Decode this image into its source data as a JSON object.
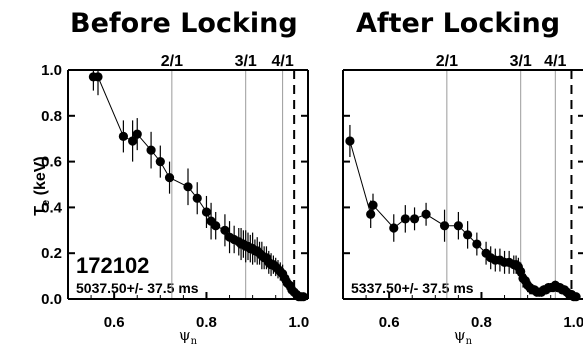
{
  "chart_data": [
    {
      "type": "scatter",
      "title": "Before Locking",
      "ylabel_main": "T",
      "ylabel_sub": "e",
      "ylabel_unit": " (keV)",
      "xlabel_main": "ψ",
      "xlabel_sub": "n",
      "xlim": [
        0.5,
        1.02
      ],
      "ylim": [
        0.0,
        1.0
      ],
      "xticks": [
        "0.6",
        "0.8",
        "1.0"
      ],
      "xtick_values": [
        0.6,
        0.8,
        1.0
      ],
      "yticks": [
        "0.0",
        "0.2",
        "0.4",
        "0.6",
        "0.8",
        "1.0"
      ],
      "ytick_values": [
        0.0,
        0.2,
        0.4,
        0.6,
        0.8,
        1.0
      ],
      "rational_surfaces": [
        {
          "label": "2/1",
          "x": 0.725
        },
        {
          "label": "3/1",
          "x": 0.885
        },
        {
          "label": "4/1",
          "x": 0.965
        }
      ],
      "separatrix_x": 0.99,
      "shot": "172102",
      "time": "5037.50+/- 37.5 ms",
      "x": [
        0.555,
        0.565,
        0.62,
        0.64,
        0.65,
        0.68,
        0.7,
        0.72,
        0.76,
        0.78,
        0.8,
        0.81,
        0.82,
        0.84,
        0.85,
        0.86,
        0.87,
        0.875,
        0.88,
        0.885,
        0.89,
        0.895,
        0.9,
        0.905,
        0.91,
        0.915,
        0.92,
        0.925,
        0.93,
        0.935,
        0.94,
        0.945,
        0.95,
        0.955,
        0.96,
        0.965,
        0.97,
        0.975,
        0.98,
        0.985,
        0.99,
        0.995,
        1.0,
        1.005,
        1.01
      ],
      "y": [
        0.97,
        0.97,
        0.71,
        0.69,
        0.72,
        0.65,
        0.6,
        0.53,
        0.49,
        0.44,
        0.38,
        0.34,
        0.32,
        0.3,
        0.27,
        0.26,
        0.25,
        0.24,
        0.24,
        0.23,
        0.23,
        0.22,
        0.22,
        0.21,
        0.21,
        0.2,
        0.19,
        0.18,
        0.18,
        0.16,
        0.15,
        0.15,
        0.14,
        0.13,
        0.12,
        0.11,
        0.09,
        0.07,
        0.06,
        0.04,
        0.03,
        0.02,
        0.01,
        0.01,
        0.01
      ],
      "err": [
        0.06,
        0.08,
        0.07,
        0.09,
        0.07,
        0.08,
        0.07,
        0.07,
        0.08,
        0.07,
        0.07,
        0.08,
        0.06,
        0.07,
        0.07,
        0.06,
        0.06,
        0.07,
        0.06,
        0.07,
        0.06,
        0.06,
        0.07,
        0.05,
        0.06,
        0.05,
        0.06,
        0.05,
        0.05,
        0.05,
        0.05,
        0.04,
        0.04,
        0.04,
        0.04,
        0.04,
        0.03,
        0.03,
        0.03,
        0.02,
        0.02,
        0.01,
        0.01,
        0.01,
        0.01
      ]
    },
    {
      "type": "scatter",
      "title": "After Locking",
      "xlabel_main": "ψ",
      "xlabel_sub": "n",
      "xlim": [
        0.5,
        1.02
      ],
      "ylim": [
        0.0,
        1.0
      ],
      "xticks": [
        "0.6",
        "0.8",
        "1.0"
      ],
      "xtick_values": [
        0.6,
        0.8,
        1.0
      ],
      "rational_surfaces": [
        {
          "label": "2/1",
          "x": 0.725
        },
        {
          "label": "3/1",
          "x": 0.885
        },
        {
          "label": "4/1",
          "x": 0.96
        }
      ],
      "separatrix_x": 0.995,
      "time": "5337.50+/- 37.5 ms",
      "x": [
        0.515,
        0.56,
        0.565,
        0.61,
        0.635,
        0.655,
        0.68,
        0.72,
        0.75,
        0.77,
        0.79,
        0.81,
        0.82,
        0.83,
        0.84,
        0.85,
        0.86,
        0.87,
        0.875,
        0.88,
        0.885,
        0.89,
        0.895,
        0.9,
        0.905,
        0.91,
        0.915,
        0.92,
        0.925,
        0.93,
        0.935,
        0.94,
        0.945,
        0.95,
        0.955,
        0.96,
        0.965,
        0.97,
        0.975,
        0.98,
        0.985,
        0.99,
        0.995,
        1.0,
        1.005
      ],
      "y": [
        0.69,
        0.37,
        0.41,
        0.31,
        0.35,
        0.35,
        0.37,
        0.32,
        0.32,
        0.28,
        0.24,
        0.2,
        0.18,
        0.17,
        0.17,
        0.16,
        0.16,
        0.15,
        0.15,
        0.14,
        0.12,
        0.09,
        0.08,
        0.06,
        0.05,
        0.04,
        0.04,
        0.03,
        0.03,
        0.03,
        0.04,
        0.04,
        0.05,
        0.05,
        0.05,
        0.06,
        0.05,
        0.05,
        0.04,
        0.04,
        0.03,
        0.02,
        0.02,
        0.01,
        0.01
      ],
      "err": [
        0.07,
        0.06,
        0.05,
        0.06,
        0.06,
        0.05,
        0.05,
        0.07,
        0.06,
        0.06,
        0.05,
        0.05,
        0.05,
        0.05,
        0.05,
        0.05,
        0.05,
        0.04,
        0.04,
        0.04,
        0.04,
        0.04,
        0.03,
        0.03,
        0.03,
        0.02,
        0.02,
        0.02,
        0.02,
        0.02,
        0.02,
        0.02,
        0.02,
        0.02,
        0.02,
        0.02,
        0.02,
        0.02,
        0.02,
        0.02,
        0.02,
        0.01,
        0.01,
        0.01,
        0.01
      ]
    }
  ]
}
